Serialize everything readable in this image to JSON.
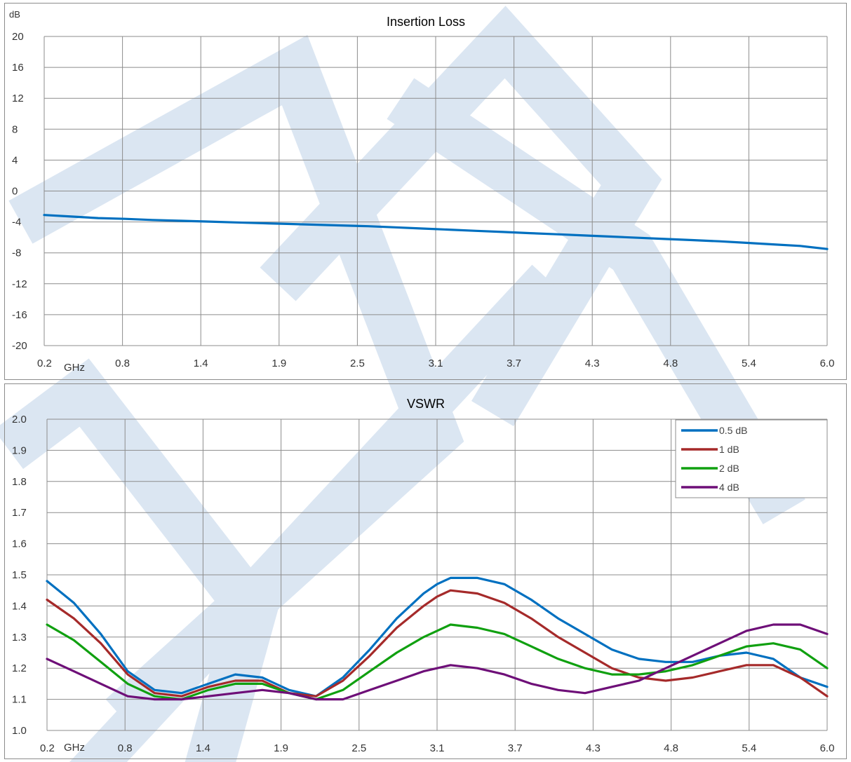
{
  "watermark": {
    "color": "#dbe6f2"
  },
  "charts": {
    "insertion_loss": {
      "title": "Insertion Loss",
      "unit_y": "dB",
      "unit_x": "GHz",
      "x_ticks": [
        "0.2",
        "0.8",
        "1.4",
        "1.9",
        "2.5",
        "3.1",
        "3.7",
        "4.3",
        "4.8",
        "5.4",
        "6.0"
      ],
      "y_ticks": [
        "20",
        "16",
        "12",
        "8",
        "4",
        "0",
        "-4",
        "-8",
        "-12",
        "-16",
        "-20"
      ]
    },
    "vswr": {
      "title": "VSWR",
      "unit_x": "GHz",
      "x_ticks": [
        "0.2",
        "0.8",
        "1.4",
        "1.9",
        "2.5",
        "3.1",
        "3.7",
        "4.3",
        "4.8",
        "5.4",
        "6.0"
      ],
      "y_ticks": [
        "2.0",
        "1.9",
        "1.8",
        "1.7",
        "1.6",
        "1.5",
        "1.4",
        "1.3",
        "1.2",
        "1.1",
        "1.0"
      ],
      "legend": [
        "0.5 dB",
        "1 dB",
        "2 dB",
        "4 dB"
      ]
    }
  },
  "chart_data": [
    {
      "type": "line",
      "title": "Insertion Loss",
      "xlabel": "GHz",
      "ylabel": "dB",
      "xlim": [
        0.2,
        6.0
      ],
      "ylim": [
        -20,
        20
      ],
      "grid": true,
      "series": [
        {
          "color": "#0070c0",
          "x": [
            0.2,
            0.4,
            0.6,
            0.8,
            1.0,
            1.2,
            1.4,
            1.6,
            1.8,
            2.0,
            2.2,
            2.4,
            2.6,
            2.8,
            3.0,
            3.2,
            3.4,
            3.6,
            3.8,
            4.0,
            4.2,
            4.4,
            4.6,
            4.8,
            5.0,
            5.2,
            5.4,
            5.6,
            5.8,
            6.0
          ],
          "y": [
            -3.1,
            -3.3,
            -3.5,
            -3.6,
            -3.75,
            -3.85,
            -3.95,
            -4.05,
            -4.15,
            -4.25,
            -4.35,
            -4.45,
            -4.55,
            -4.7,
            -4.85,
            -5.0,
            -5.15,
            -5.3,
            -5.45,
            -5.6,
            -5.75,
            -5.9,
            -6.05,
            -6.2,
            -6.35,
            -6.5,
            -6.7,
            -6.9,
            -7.1,
            -7.5
          ]
        }
      ]
    },
    {
      "type": "line",
      "title": "VSWR",
      "xlabel": "GHz",
      "xlim": [
        0.2,
        6.0
      ],
      "ylim": [
        1.0,
        2.0
      ],
      "grid": true,
      "legend_position": "top-right",
      "series": [
        {
          "name": "0.5 dB",
          "color": "#0070c0",
          "x": [
            0.2,
            0.4,
            0.6,
            0.8,
            1.0,
            1.2,
            1.4,
            1.6,
            1.8,
            2.0,
            2.2,
            2.4,
            2.6,
            2.8,
            3.0,
            3.1,
            3.2,
            3.4,
            3.6,
            3.8,
            4.0,
            4.2,
            4.4,
            4.6,
            4.8,
            5.0,
            5.2,
            5.4,
            5.6,
            5.8,
            6.0
          ],
          "y": [
            1.48,
            1.41,
            1.31,
            1.19,
            1.13,
            1.12,
            1.15,
            1.18,
            1.17,
            1.13,
            1.11,
            1.17,
            1.26,
            1.36,
            1.44,
            1.47,
            1.49,
            1.49,
            1.47,
            1.42,
            1.36,
            1.31,
            1.26,
            1.23,
            1.22,
            1.22,
            1.24,
            1.25,
            1.23,
            1.17,
            1.14
          ]
        },
        {
          "name": "1 dB",
          "color": "#a52a2a",
          "x": [
            0.2,
            0.4,
            0.6,
            0.8,
            1.0,
            1.2,
            1.4,
            1.6,
            1.8,
            2.0,
            2.2,
            2.4,
            2.6,
            2.8,
            3.0,
            3.1,
            3.2,
            3.4,
            3.6,
            3.8,
            4.0,
            4.2,
            4.4,
            4.6,
            4.8,
            5.0,
            5.2,
            5.4,
            5.6,
            5.8,
            6.0
          ],
          "y": [
            1.42,
            1.36,
            1.28,
            1.18,
            1.12,
            1.11,
            1.14,
            1.16,
            1.16,
            1.12,
            1.11,
            1.16,
            1.24,
            1.33,
            1.4,
            1.43,
            1.45,
            1.44,
            1.41,
            1.36,
            1.3,
            1.25,
            1.2,
            1.17,
            1.16,
            1.17,
            1.19,
            1.21,
            1.21,
            1.17,
            1.11
          ]
        },
        {
          "name": "2 dB",
          "color": "#10a010",
          "x": [
            0.2,
            0.4,
            0.6,
            0.8,
            1.0,
            1.2,
            1.4,
            1.6,
            1.8,
            2.0,
            2.2,
            2.4,
            2.6,
            2.8,
            3.0,
            3.1,
            3.2,
            3.4,
            3.6,
            3.8,
            4.0,
            4.2,
            4.4,
            4.6,
            4.8,
            5.0,
            5.2,
            5.4,
            5.6,
            5.8,
            6.0
          ],
          "y": [
            1.34,
            1.29,
            1.22,
            1.15,
            1.11,
            1.1,
            1.13,
            1.15,
            1.15,
            1.12,
            1.1,
            1.13,
            1.19,
            1.25,
            1.3,
            1.32,
            1.34,
            1.33,
            1.31,
            1.27,
            1.23,
            1.2,
            1.18,
            1.18,
            1.19,
            1.21,
            1.24,
            1.27,
            1.28,
            1.26,
            1.2
          ]
        },
        {
          "name": "4 dB",
          "color": "#6e0f78",
          "x": [
            0.2,
            0.4,
            0.6,
            0.8,
            1.0,
            1.2,
            1.4,
            1.6,
            1.8,
            2.0,
            2.2,
            2.4,
            2.6,
            2.8,
            3.0,
            3.1,
            3.2,
            3.4,
            3.6,
            3.8,
            4.0,
            4.2,
            4.4,
            4.6,
            4.8,
            5.0,
            5.2,
            5.4,
            5.6,
            5.8,
            6.0
          ],
          "y": [
            1.23,
            1.19,
            1.15,
            1.11,
            1.1,
            1.1,
            1.11,
            1.12,
            1.13,
            1.12,
            1.1,
            1.1,
            1.13,
            1.16,
            1.19,
            1.2,
            1.21,
            1.2,
            1.18,
            1.15,
            1.13,
            1.12,
            1.14,
            1.16,
            1.2,
            1.24,
            1.28,
            1.32,
            1.34,
            1.34,
            1.31
          ]
        }
      ]
    }
  ]
}
